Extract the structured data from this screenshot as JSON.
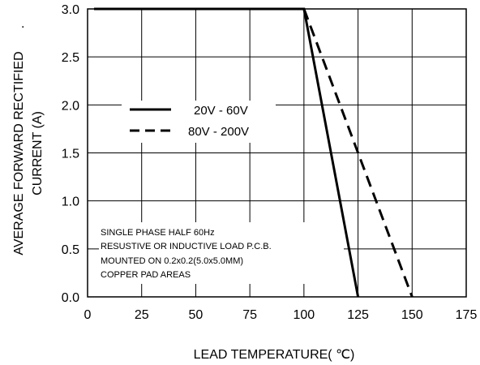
{
  "chart_data": {
    "type": "line",
    "xlabel": "LEAD TEMPERATURE( ℃)",
    "ylabel_lines": [
      "AVERAGE FORWARD RECTIFIED",
      "CURRENT (A)"
    ],
    "ylabel_mark": ".",
    "xlim": [
      0,
      175
    ],
    "ylim": [
      0,
      3.0
    ],
    "x_ticks": [
      0,
      25,
      50,
      75,
      100,
      125,
      150,
      175
    ],
    "x_tick_labels": [
      "0",
      "25",
      "50",
      "75",
      "100",
      "125",
      "150",
      "175"
    ],
    "y_ticks": [
      0,
      0.5,
      1.0,
      1.5,
      2.0,
      2.5,
      3.0
    ],
    "y_tick_labels": [
      "0.0",
      "0.5",
      "1.0",
      "1.5",
      "2.0",
      "2.5",
      "3.0"
    ],
    "grid": true,
    "series": [
      {
        "name": "20V - 60V",
        "style": "solid",
        "x": [
          3,
          100,
          125
        ],
        "y": [
          3.0,
          3.0,
          0.0
        ]
      },
      {
        "name": "80V - 200V",
        "style": "dashed",
        "x": [
          100,
          150
        ],
        "y": [
          3.0,
          0.0
        ]
      }
    ],
    "legend_position": "center-left",
    "annotation_lines": [
      "SINGLE PHASE HALF 60Hz",
      "RESUSTIVE OR INDUCTIVE LOAD P.C.B.",
      "MOUNTED ON 0.2x0.2(5.0x5.0MM)",
      "COPPER PAD AREAS"
    ]
  }
}
